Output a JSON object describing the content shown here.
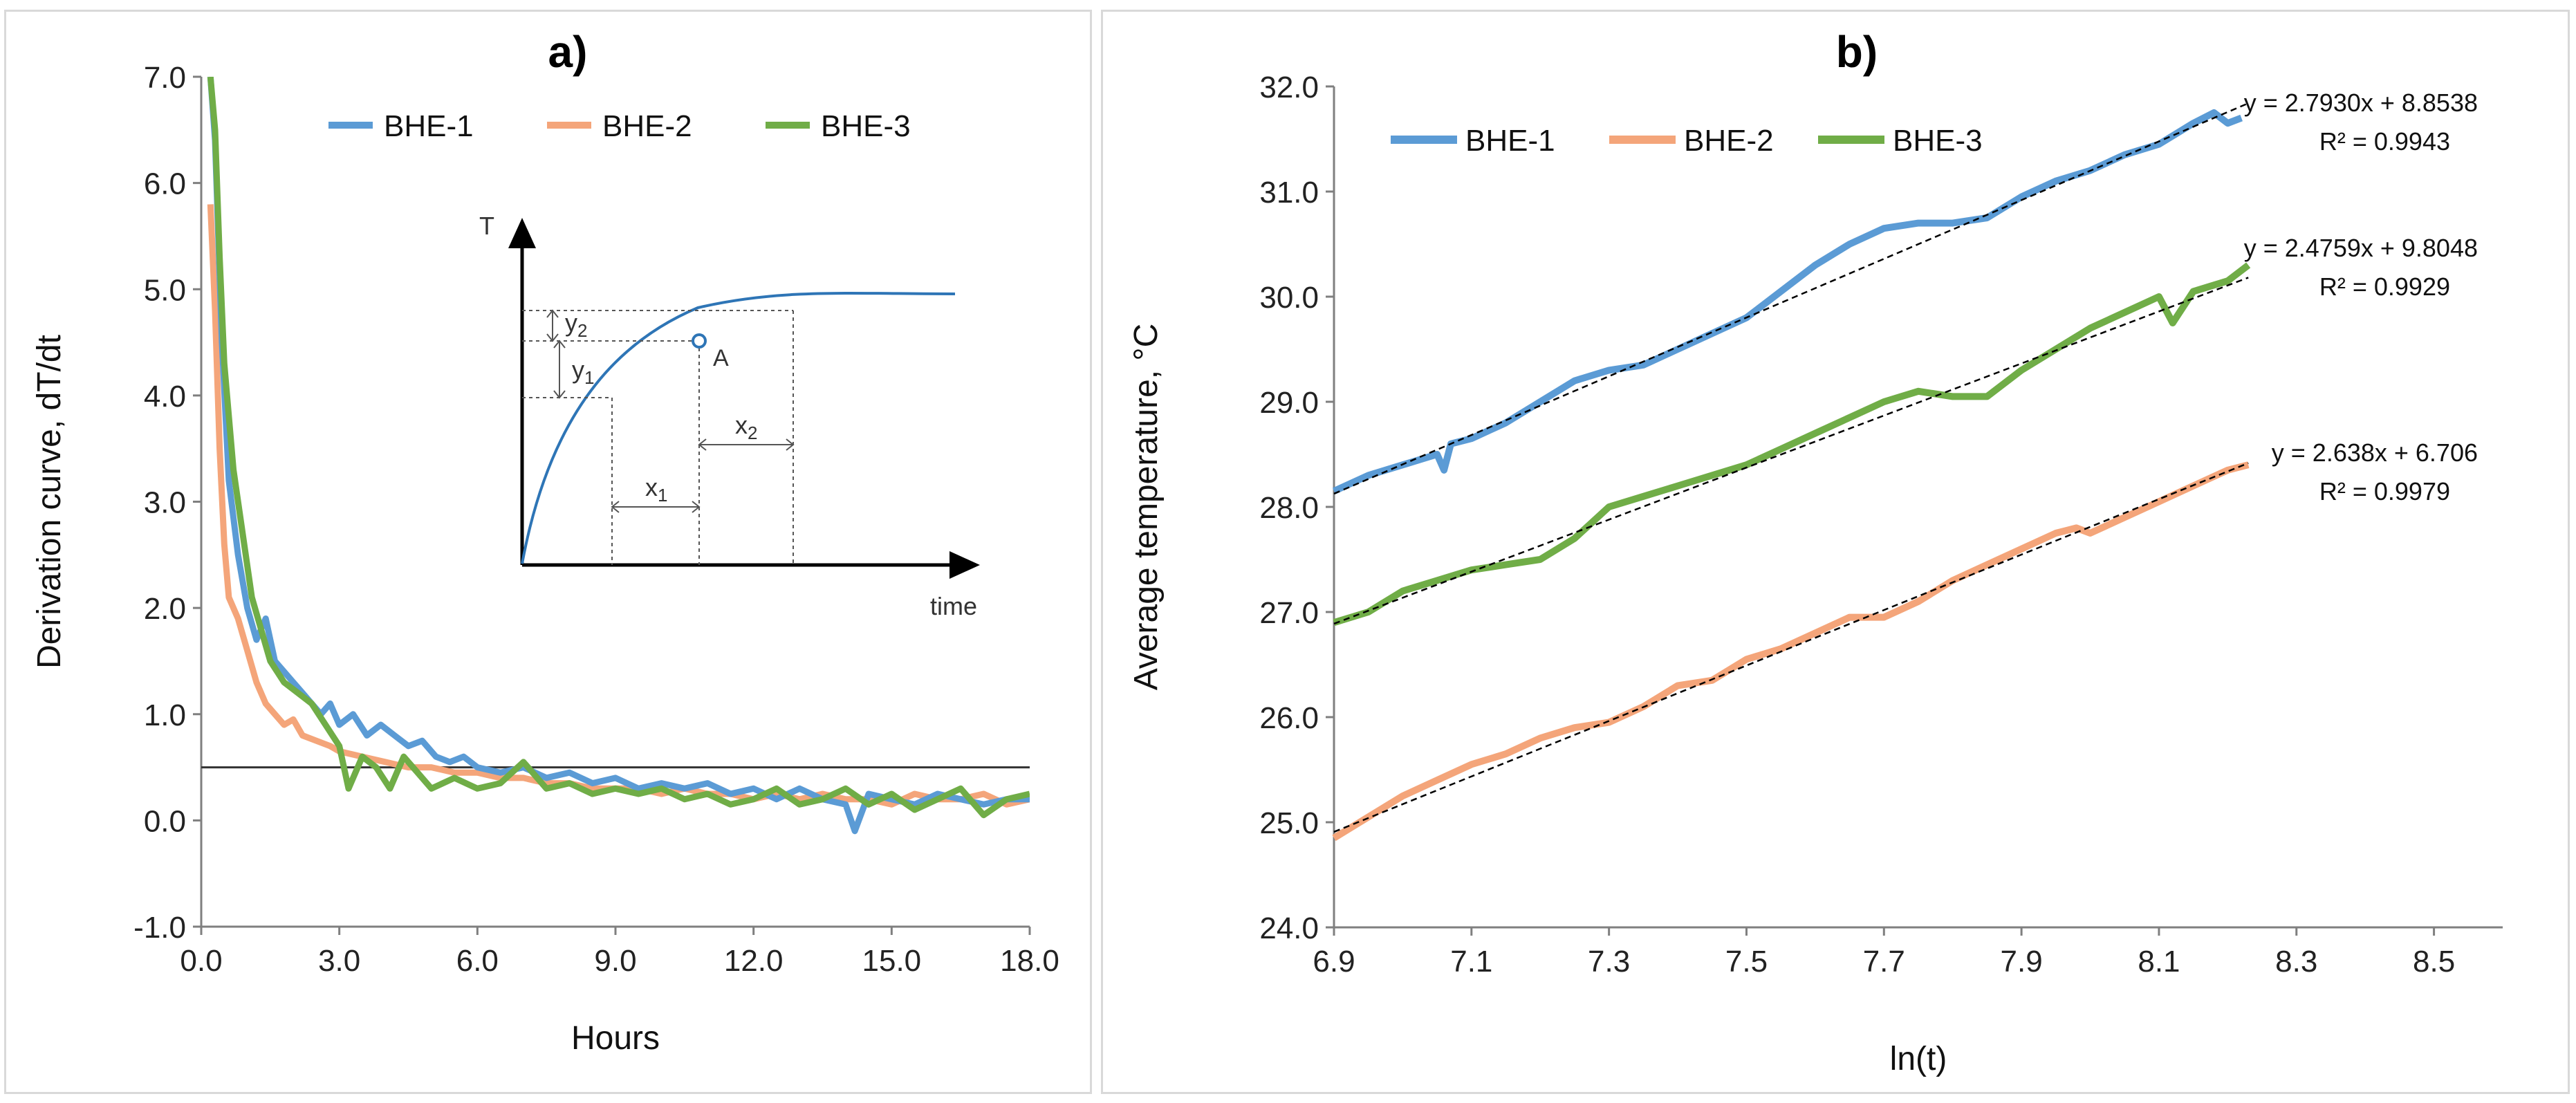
{
  "colors": {
    "bhe1": "#5b9bd5",
    "bhe2": "#f4a57a",
    "bhe3": "#70ad47",
    "axis": "#7f7f7f",
    "trend": "#000000",
    "inset_curve": "#2e75b6"
  },
  "chart_data": [
    {
      "type": "line",
      "panel_label": "a)",
      "title": "",
      "xlabel": "Hours",
      "ylabel": "Derivation curve, dT/dt",
      "xlim": [
        0,
        18
      ],
      "ylim": [
        -1,
        7
      ],
      "x_ticks": [
        "0.0",
        "3.0",
        "6.0",
        "9.0",
        "12.0",
        "15.0",
        "18.0"
      ],
      "y_ticks": [
        "-1.0",
        "0.0",
        "1.0",
        "2.0",
        "3.0",
        "4.0",
        "5.0",
        "6.0",
        "7.0"
      ],
      "grid": false,
      "legend": "top",
      "threshold_line": 0.5,
      "series": [
        {
          "name": "BHE-1",
          "x": [
            0.2,
            0.3,
            0.45,
            0.6,
            0.8,
            1.0,
            1.2,
            1.4,
            1.6,
            1.8,
            2.0,
            2.2,
            2.4,
            2.6,
            2.8,
            3.0,
            3.3,
            3.6,
            3.9,
            4.2,
            4.5,
            4.8,
            5.1,
            5.4,
            5.7,
            6.0,
            6.5,
            7.0,
            7.5,
            8.0,
            8.5,
            9.0,
            9.5,
            10.0,
            10.5,
            11.0,
            11.5,
            12.0,
            12.5,
            13.0,
            13.5,
            14.0,
            14.2,
            14.5,
            15.0,
            15.5,
            16.0,
            16.5,
            17.0,
            17.5,
            18.0
          ],
          "y": [
            7.0,
            6.4,
            4.5,
            3.2,
            2.5,
            2.0,
            1.7,
            1.9,
            1.5,
            1.4,
            1.3,
            1.2,
            1.1,
            1.0,
            1.1,
            0.9,
            1.0,
            0.8,
            0.9,
            0.8,
            0.7,
            0.75,
            0.6,
            0.55,
            0.6,
            0.5,
            0.45,
            0.5,
            0.4,
            0.45,
            0.35,
            0.4,
            0.3,
            0.35,
            0.3,
            0.35,
            0.25,
            0.3,
            0.2,
            0.3,
            0.2,
            0.15,
            -0.1,
            0.25,
            0.2,
            0.15,
            0.25,
            0.2,
            0.15,
            0.2,
            0.2
          ]
        },
        {
          "name": "BHE-2",
          "x": [
            0.2,
            0.3,
            0.4,
            0.5,
            0.6,
            0.8,
            1.0,
            1.2,
            1.4,
            1.6,
            1.8,
            2.0,
            2.2,
            2.5,
            2.8,
            3.0,
            3.5,
            4.0,
            4.5,
            5.0,
            5.5,
            6.0,
            6.5,
            7.0,
            7.5,
            8.0,
            8.5,
            9.0,
            9.5,
            10.0,
            10.5,
            11.0,
            11.5,
            12.0,
            12.5,
            13.0,
            13.5,
            14.0,
            14.5,
            15.0,
            15.5,
            16.0,
            16.5,
            17.0,
            17.5,
            18.0
          ],
          "y": [
            5.8,
            4.8,
            3.5,
            2.6,
            2.1,
            1.9,
            1.6,
            1.3,
            1.1,
            1.0,
            0.9,
            0.95,
            0.8,
            0.75,
            0.7,
            0.65,
            0.6,
            0.55,
            0.5,
            0.5,
            0.45,
            0.45,
            0.4,
            0.4,
            0.35,
            0.35,
            0.3,
            0.3,
            0.3,
            0.25,
            0.3,
            0.25,
            0.25,
            0.2,
            0.25,
            0.2,
            0.25,
            0.2,
            0.2,
            0.15,
            0.25,
            0.2,
            0.2,
            0.25,
            0.15,
            0.2
          ]
        },
        {
          "name": "BHE-3",
          "x": [
            0.2,
            0.3,
            0.4,
            0.5,
            0.7,
            0.9,
            1.1,
            1.3,
            1.5,
            1.8,
            2.1,
            2.4,
            2.7,
            3.0,
            3.2,
            3.5,
            3.8,
            4.1,
            4.4,
            4.7,
            5.0,
            5.5,
            6.0,
            6.5,
            7.0,
            7.5,
            8.0,
            8.5,
            9.0,
            9.5,
            10.0,
            10.5,
            11.0,
            11.5,
            12.0,
            12.5,
            13.0,
            13.5,
            14.0,
            14.5,
            15.0,
            15.5,
            16.0,
            16.5,
            17.0,
            17.5,
            18.0
          ],
          "y": [
            7.0,
            6.5,
            5.3,
            4.3,
            3.3,
            2.7,
            2.1,
            1.8,
            1.5,
            1.3,
            1.2,
            1.1,
            0.9,
            0.7,
            0.3,
            0.6,
            0.5,
            0.3,
            0.6,
            0.45,
            0.3,
            0.4,
            0.3,
            0.35,
            0.55,
            0.3,
            0.35,
            0.25,
            0.3,
            0.25,
            0.3,
            0.2,
            0.25,
            0.15,
            0.2,
            0.3,
            0.15,
            0.2,
            0.3,
            0.15,
            0.25,
            0.1,
            0.2,
            0.3,
            0.05,
            0.2,
            0.25
          ]
        }
      ],
      "inset": {
        "y_axis_label": "T",
        "x_axis_label": "time",
        "point_label": "A",
        "labels": [
          "y2",
          "y1",
          "x1",
          "x2"
        ]
      }
    },
    {
      "type": "line",
      "panel_label": "b)",
      "title": "",
      "xlabel": "ln(t)",
      "ylabel": "Average temperature, °C",
      "xlim": [
        6.9,
        8.6
      ],
      "ylim": [
        24.0,
        32.0
      ],
      "x_ticks": [
        "6.9",
        "7.1",
        "7.3",
        "7.5",
        "7.7",
        "7.9",
        "8.1",
        "8.3",
        "8.5"
      ],
      "y_ticks": [
        "24.0",
        "25.0",
        "26.0",
        "27.0",
        "28.0",
        "29.0",
        "30.0",
        "31.0",
        "32.0"
      ],
      "grid": false,
      "legend": "top-left",
      "series": [
        {
          "name": "BHE-1",
          "x": [
            6.9,
            6.95,
            7.0,
            7.05,
            7.06,
            7.07,
            7.1,
            7.15,
            7.2,
            7.25,
            7.3,
            7.35,
            7.4,
            7.45,
            7.5,
            7.55,
            7.6,
            7.65,
            7.7,
            7.75,
            7.8,
            7.85,
            7.9,
            7.95,
            8.0,
            8.05,
            8.1,
            8.15,
            8.18,
            8.2,
            8.22
          ],
          "y": [
            28.15,
            28.3,
            28.4,
            28.5,
            28.35,
            28.6,
            28.65,
            28.8,
            29.0,
            29.2,
            29.3,
            29.35,
            29.5,
            29.65,
            29.8,
            30.05,
            30.3,
            30.5,
            30.65,
            30.7,
            30.7,
            30.75,
            30.95,
            31.1,
            31.2,
            31.35,
            31.45,
            31.65,
            31.75,
            31.65,
            31.7
          ]
        },
        {
          "name": "BHE-2",
          "x": [
            6.9,
            6.95,
            7.0,
            7.05,
            7.1,
            7.15,
            7.2,
            7.25,
            7.3,
            7.35,
            7.4,
            7.45,
            7.5,
            7.55,
            7.6,
            7.65,
            7.7,
            7.75,
            7.8,
            7.85,
            7.9,
            7.95,
            7.98,
            8.0,
            8.05,
            8.1,
            8.15,
            8.2,
            8.23
          ],
          "y": [
            24.85,
            25.05,
            25.25,
            25.4,
            25.55,
            25.65,
            25.8,
            25.9,
            25.95,
            26.1,
            26.3,
            26.35,
            26.55,
            26.65,
            26.8,
            26.95,
            26.95,
            27.1,
            27.3,
            27.45,
            27.6,
            27.75,
            27.8,
            27.75,
            27.9,
            28.05,
            28.2,
            28.35,
            28.4
          ]
        },
        {
          "name": "BHE-3",
          "x": [
            6.9,
            6.95,
            7.0,
            7.05,
            7.1,
            7.15,
            7.2,
            7.25,
            7.3,
            7.35,
            7.4,
            7.45,
            7.5,
            7.55,
            7.6,
            7.65,
            7.7,
            7.75,
            7.8,
            7.85,
            7.9,
            7.95,
            8.0,
            8.05,
            8.1,
            8.12,
            8.15,
            8.2,
            8.23
          ],
          "y": [
            26.9,
            27.0,
            27.2,
            27.3,
            27.4,
            27.45,
            27.5,
            27.7,
            28.0,
            28.1,
            28.2,
            28.3,
            28.4,
            28.55,
            28.7,
            28.85,
            29.0,
            29.1,
            29.05,
            29.05,
            29.3,
            29.5,
            29.7,
            29.85,
            30.0,
            29.75,
            30.05,
            30.15,
            30.3
          ]
        }
      ],
      "trendlines": [
        {
          "series": "BHE-1",
          "slope": 2.793,
          "intercept": 8.8538,
          "x_range": [
            6.9,
            8.23
          ],
          "equation": "y = 2.7930x + 8.8538",
          "r2": "R² = 0.9943"
        },
        {
          "series": "BHE-3",
          "slope": 2.4759,
          "intercept": 9.8048,
          "x_range": [
            6.9,
            8.23
          ],
          "equation": "y = 2.4759x + 9.8048",
          "r2": "R² = 0.9929"
        },
        {
          "series": "BHE-2",
          "slope": 2.638,
          "intercept": 6.706,
          "x_range": [
            6.9,
            8.23
          ],
          "equation": "y = 2.638x + 6.706",
          "r2": "R² = 0.9979"
        }
      ]
    }
  ]
}
